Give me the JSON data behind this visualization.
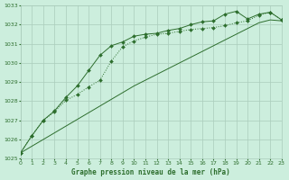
{
  "xlabel": "Graphe pression niveau de la mer (hPa)",
  "ylim": [
    1025,
    1033
  ],
  "xlim": [
    0,
    23
  ],
  "yticks": [
    1025,
    1026,
    1027,
    1028,
    1029,
    1030,
    1031,
    1032,
    1033
  ],
  "xticks": [
    0,
    1,
    2,
    3,
    4,
    5,
    6,
    7,
    8,
    9,
    10,
    11,
    12,
    13,
    14,
    15,
    16,
    17,
    18,
    19,
    20,
    21,
    22,
    23
  ],
  "background_color": "#cceedd",
  "grid_color": "#aaccbb",
  "line_color": "#2d6e2d",
  "series_dotted": {
    "x": [
      0,
      1,
      2,
      3,
      4,
      5,
      6,
      7,
      8,
      9,
      10,
      11,
      12,
      13,
      14,
      15,
      16,
      17,
      18,
      19,
      20,
      21,
      22,
      23
    ],
    "y": [
      1025.3,
      1026.2,
      1027.0,
      1027.45,
      1028.05,
      1028.35,
      1028.75,
      1029.1,
      1030.1,
      1030.85,
      1031.15,
      1031.35,
      1031.5,
      1031.55,
      1031.65,
      1031.75,
      1031.8,
      1031.85,
      1031.95,
      1032.1,
      1032.2,
      1032.5,
      1032.65,
      1032.25
    ]
  },
  "series_solid_markers": {
    "x": [
      0,
      1,
      2,
      3,
      4,
      5,
      6,
      7,
      8,
      9,
      10,
      11,
      12,
      13,
      14,
      15,
      16,
      17,
      18,
      19,
      20,
      21,
      22,
      23
    ],
    "y": [
      1025.3,
      1026.2,
      1027.0,
      1027.5,
      1028.2,
      1028.8,
      1029.6,
      1030.4,
      1030.9,
      1031.1,
      1031.4,
      1031.5,
      1031.55,
      1031.7,
      1031.8,
      1032.0,
      1032.15,
      1032.2,
      1032.55,
      1032.7,
      1032.3,
      1032.55,
      1032.65,
      1032.25
    ]
  },
  "series_solid_nomar": {
    "x": [
      0,
      1,
      2,
      3,
      4,
      5,
      6,
      7,
      8,
      9,
      10,
      11,
      12,
      13,
      14,
      15,
      16,
      17,
      18,
      19,
      20,
      21,
      22,
      23
    ],
    "y": [
      1025.3,
      1025.65,
      1026.0,
      1026.35,
      1026.7,
      1027.05,
      1027.4,
      1027.75,
      1028.1,
      1028.45,
      1028.8,
      1029.1,
      1029.4,
      1029.7,
      1030.0,
      1030.3,
      1030.6,
      1030.9,
      1031.2,
      1031.5,
      1031.8,
      1032.1,
      1032.25,
      1032.2
    ]
  }
}
